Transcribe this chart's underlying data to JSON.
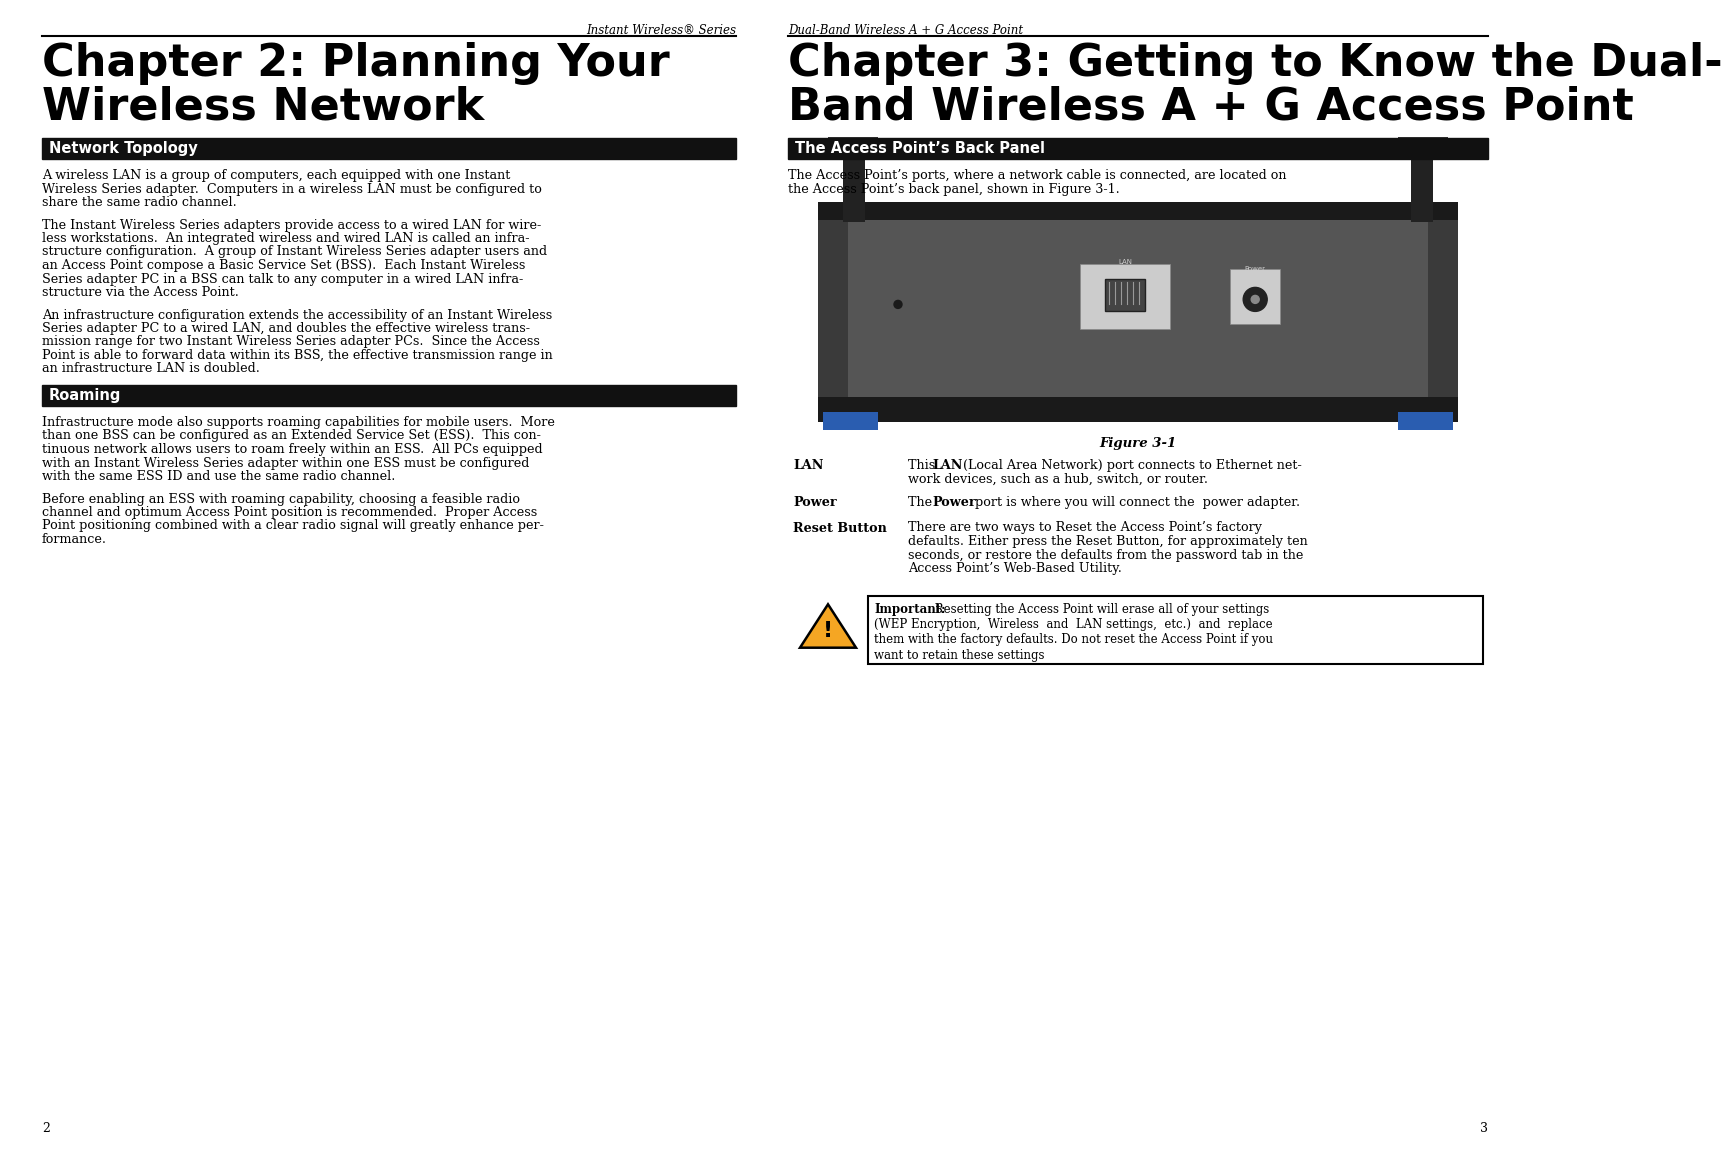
{
  "page_bg": "#ffffff",
  "left_header_italic": "Instant Wireless® Series",
  "right_header_italic": "Dual-Band Wireless A + G Access Point",
  "left_chapter_title_line1": "Chapter 2: Planning Your",
  "left_chapter_title_line2": "Wireless Network",
  "right_chapter_title_line1": "Chapter 3: Getting to Know the Dual-",
  "right_chapter_title_line2": "Band Wireless A + G Access Point",
  "left_section1_title": "Network Topology",
  "left_section1_para1": [
    "A wireless LAN is a group of computers, each equipped with one Instant",
    "Wireless Series adapter.  Computers in a wireless LAN must be configured to",
    "share the same radio channel."
  ],
  "left_section1_para2": [
    "The Instant Wireless Series adapters provide access to a wired LAN for wire-",
    "less workstations.  An integrated wireless and wired LAN is called an infra-",
    "structure configuration.  A group of Instant Wireless Series adapter users and",
    "an Access Point compose a Basic Service Set (BSS).  Each Instant Wireless",
    "Series adapter PC in a BSS can talk to any computer in a wired LAN infra-",
    "structure via the Access Point."
  ],
  "left_section1_para3": [
    "An infrastructure configuration extends the accessibility of an Instant Wireless",
    "Series adapter PC to a wired LAN, and doubles the effective wireless trans-",
    "mission range for two Instant Wireless Series adapter PCs.  Since the Access",
    "Point is able to forward data within its BSS, the effective transmission range in",
    "an infrastructure LAN is doubled."
  ],
  "left_section2_title": "Roaming",
  "left_section2_para1": [
    "Infrastructure mode also supports roaming capabilities for mobile users.  More",
    "than one BSS can be configured as an Extended Service Set (ESS).  This con-",
    "tinuous network allows users to roam freely within an ESS.  All PCs equipped",
    "with an Instant Wireless Series adapter within one ESS must be configured",
    "with the same ESS ID and use the same radio channel."
  ],
  "left_section2_para2": [
    "Before enabling an ESS with roaming capability, choosing a feasible radio",
    "channel and optimum Access Point position is recommended.  Proper Access",
    "Point positioning combined with a clear radio signal will greatly enhance per-",
    "formance."
  ],
  "right_section1_title": "The Access Point’s Back Panel",
  "right_intro_lines": [
    "The Access Point’s ports, where a network cable is connected, are located on",
    "the Access Point’s back panel, shown in Figure 3-1."
  ],
  "figure_caption": "Figure 3-1",
  "lan_label": "LAN",
  "lan_text_line1": "This LAN (Local Area Network) port connects to Ethernet net-",
  "lan_text_line2": "work devices, such as a hub, switch, or router.",
  "power_label": "Power",
  "power_text": "The Power port is where you will connect the  power adapter.",
  "reset_label": "Reset Button",
  "reset_text_lines": [
    "There are two ways to Reset the Access Point’s factory",
    "defaults. Either press the Reset Button, for approximately ten",
    "seconds, or restore the defaults from the password tab in the",
    "Access Point’s Web-Based Utility."
  ],
  "warning_lines": [
    "Important: Resetting the Access Point will erase all of your settings",
    "(WEP Encryption,  Wireless  and  LAN settings,  etc.)  and  replace",
    "them with the factory defaults. Do not reset the Access Point if you",
    "want to retain these settings"
  ],
  "left_page_num": "2",
  "right_page_num": "3",
  "section_bar_color": "#111111",
  "title_font_size": 32,
  "section_title_fontsize": 10.5,
  "body_fontsize": 9.2,
  "header_fontsize": 8.5
}
